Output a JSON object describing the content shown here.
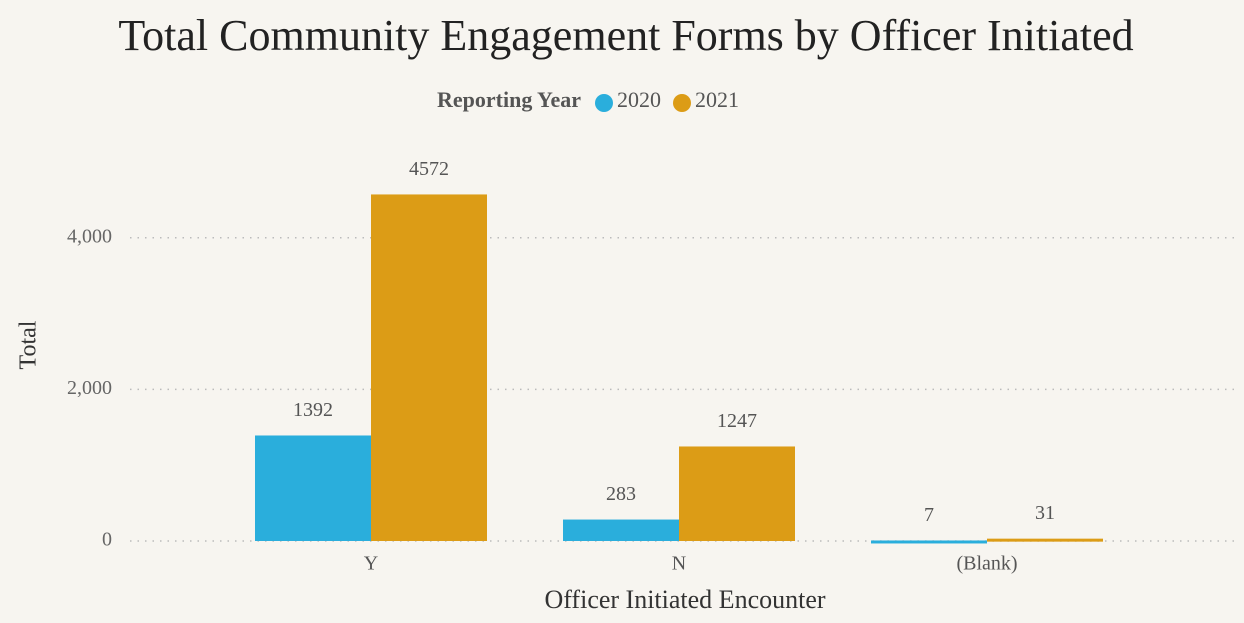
{
  "chart_data": {
    "type": "bar",
    "title": "Total Community Engagement Forms by Officer Initiated",
    "legend_title": "Reporting Year",
    "x_label": "Officer Initiated Encounter",
    "y_label": "Total",
    "categories": [
      "Y",
      "N",
      "(Blank)"
    ],
    "series": [
      {
        "name": "2020",
        "color": "#2aaedc",
        "values": [
          1392,
          283,
          7
        ]
      },
      {
        "name": "2021",
        "color": "#dc9c16",
        "values": [
          4572,
          1247,
          31
        ]
      }
    ],
    "ylim": [
      0,
      5000
    ],
    "yticks": [
      0,
      {
        "value": 2000,
        "label": "2,000"
      },
      {
        "value": 4000,
        "label": "4,000"
      }
    ],
    "grid": true
  }
}
